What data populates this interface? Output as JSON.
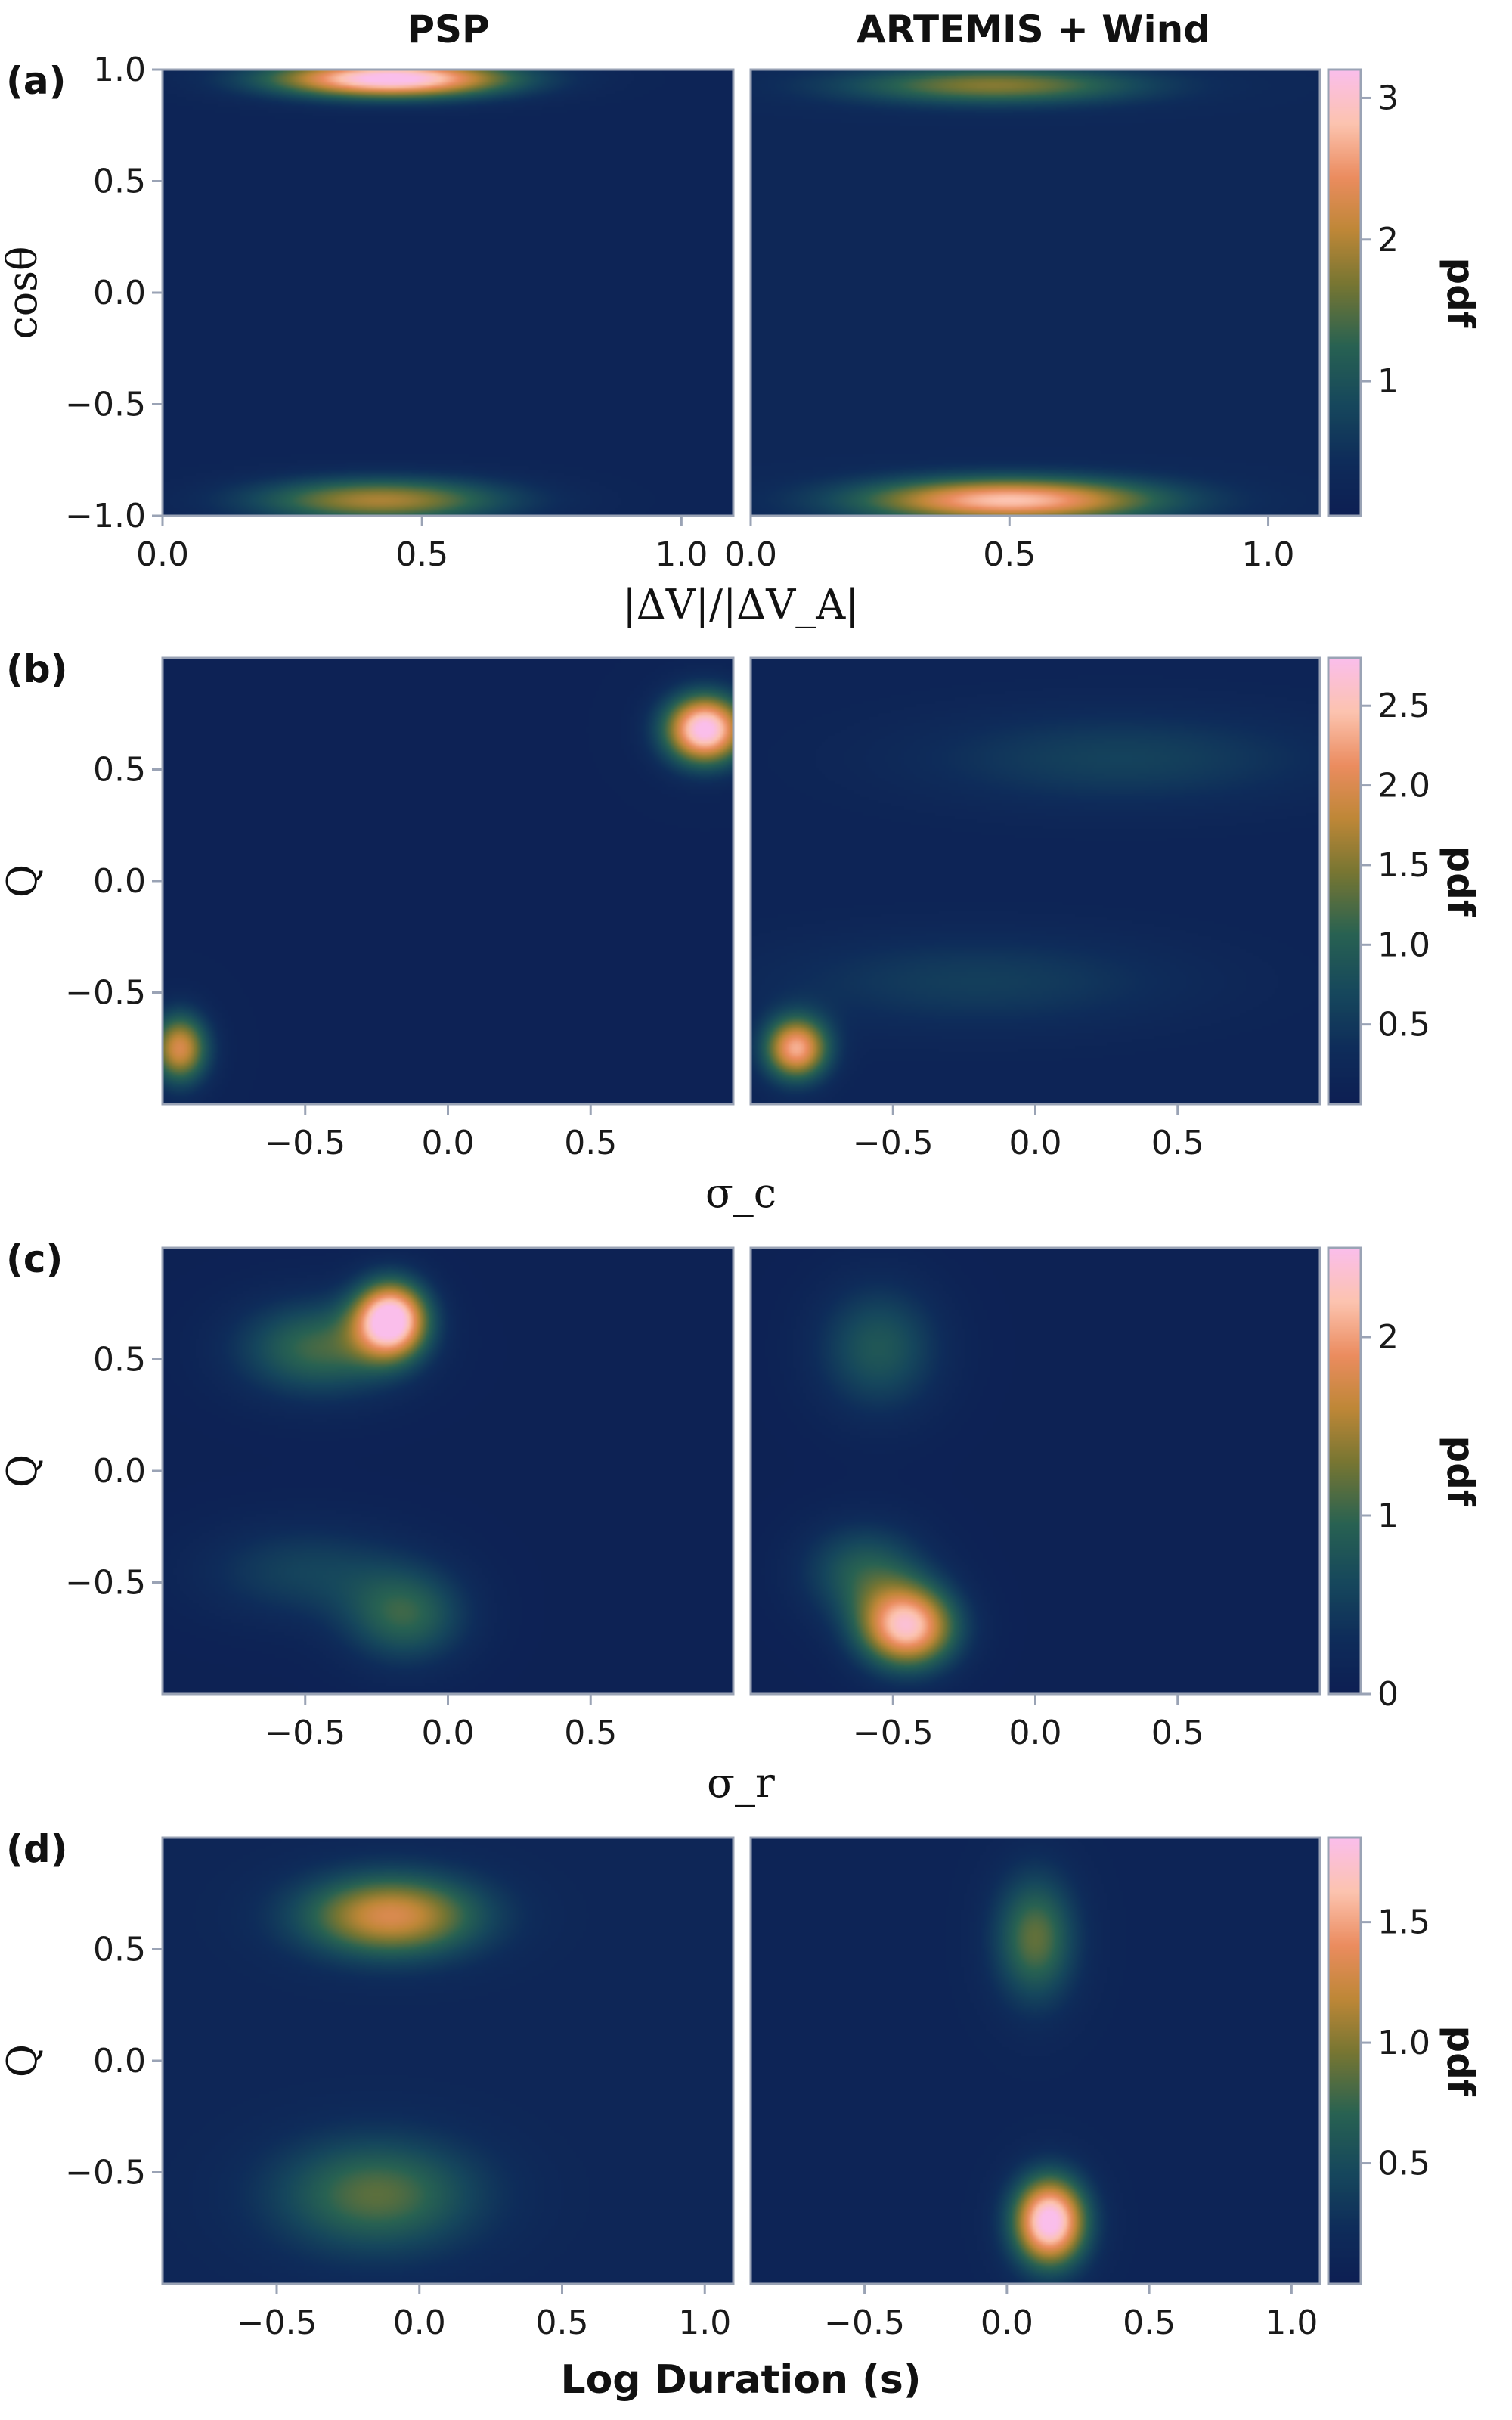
{
  "columns": [
    "PSP",
    "ARTEMIS + Wind"
  ],
  "chart_data": [
    {
      "type": "heatmap",
      "panel_label": "(a)",
      "xlabel": "|ΔV|/|ΔV_A|",
      "ylabel": "cosθ",
      "xlim": [
        0.0,
        1.1
      ],
      "ylim": [
        -1.0,
        1.0
      ],
      "x_ticks": [
        "0.0",
        "0.5",
        "1.0"
      ],
      "x_tick_values": [
        0.0,
        0.5,
        1.0
      ],
      "y_ticks": [
        "1.0",
        "0.5",
        "0.0",
        "−0.5",
        "−1.0"
      ],
      "y_tick_values": [
        1.0,
        0.5,
        0.0,
        -0.5,
        -1.0
      ],
      "colorbar_label": "pdf",
      "colorbar_range": [
        0.05,
        3.2
      ],
      "colorbar_ticks": [
        "1",
        "2",
        "3"
      ],
      "colorbar_tick_values": [
        1,
        2,
        3
      ],
      "series": [
        {
          "name": "PSP",
          "blobs": [
            {
              "x": 0.44,
              "y": 0.96,
              "sx": 0.16,
              "sy": 0.06,
              "peak": 3.2
            },
            {
              "x": 0.42,
              "y": -0.93,
              "sx": 0.17,
              "sy": 0.07,
              "peak": 1.8
            }
          ],
          "background": 0.25
        },
        {
          "name": "ARTEMIS + Wind",
          "blobs": [
            {
              "x": 0.5,
              "y": -0.93,
              "sx": 0.2,
              "sy": 0.07,
              "peak": 2.6
            },
            {
              "x": 0.47,
              "y": 0.93,
              "sx": 0.2,
              "sy": 0.06,
              "peak": 1.5
            }
          ],
          "background": 0.4
        }
      ]
    },
    {
      "type": "heatmap",
      "panel_label": "(b)",
      "xlabel": "σ_c",
      "ylabel": "Q",
      "xlim": [
        -1.0,
        1.0
      ],
      "ylim": [
        -1.0,
        1.0
      ],
      "x_ticks": [
        "−0.5",
        "0.0",
        "0.5"
      ],
      "x_tick_values": [
        -0.5,
        0.0,
        0.5
      ],
      "y_ticks": [
        "0.5",
        "0.0",
        "−0.5"
      ],
      "y_tick_values": [
        0.5,
        0.0,
        -0.5
      ],
      "colorbar_label": "pdf",
      "colorbar_range": [
        0.0,
        2.8
      ],
      "colorbar_ticks": [
        "0.5",
        "1.0",
        "1.5",
        "2.0",
        "2.5"
      ],
      "colorbar_tick_values": [
        0.5,
        1.0,
        1.5,
        2.0,
        2.5
      ],
      "series": [
        {
          "name": "PSP",
          "blobs": [
            {
              "x": 0.9,
              "y": 0.68,
              "sx": 0.1,
              "sy": 0.11,
              "peak": 2.8
            },
            {
              "x": -0.94,
              "y": -0.75,
              "sx": 0.07,
              "sy": 0.11,
              "peak": 1.9
            }
          ],
          "background": 0.15
        },
        {
          "name": "ARTEMIS + Wind",
          "blobs": [
            {
              "x": -0.84,
              "y": -0.75,
              "sx": 0.08,
              "sy": 0.1,
              "peak": 2.2
            },
            {
              "x": 0.3,
              "y": 0.55,
              "sx": 0.5,
              "sy": 0.15,
              "peak": 0.5
            },
            {
              "x": -0.2,
              "y": -0.45,
              "sx": 0.5,
              "sy": 0.15,
              "peak": 0.45
            }
          ],
          "background": 0.2
        }
      ]
    },
    {
      "type": "heatmap",
      "panel_label": "(c)",
      "xlabel": "σ_r",
      "ylabel": "Q",
      "xlim": [
        -1.0,
        1.0
      ],
      "ylim": [
        -1.0,
        1.0
      ],
      "x_ticks": [
        "−0.5",
        "0.0",
        "0.5"
      ],
      "x_tick_values": [
        -0.5,
        0.0,
        0.5
      ],
      "y_ticks": [
        "0.5",
        "0.0",
        "−0.5"
      ],
      "y_tick_values": [
        0.5,
        0.0,
        -0.5
      ],
      "colorbar_label": "pdf",
      "colorbar_range": [
        0.0,
        2.5
      ],
      "colorbar_ticks": [
        "0",
        "1",
        "2"
      ],
      "colorbar_tick_values": [
        0,
        1,
        2
      ],
      "series": [
        {
          "name": "PSP",
          "blobs": [
            {
              "x": -0.2,
              "y": 0.68,
              "sx": 0.09,
              "sy": 0.12,
              "peak": 2.5
            },
            {
              "x": -0.45,
              "y": 0.55,
              "sx": 0.2,
              "sy": 0.15,
              "peak": 1.0
            },
            {
              "x": -0.15,
              "y": -0.65,
              "sx": 0.15,
              "sy": 0.15,
              "peak": 0.9
            },
            {
              "x": -0.5,
              "y": -0.45,
              "sx": 0.25,
              "sy": 0.15,
              "peak": 0.5
            }
          ],
          "background": 0.1
        },
        {
          "name": "ARTEMIS + Wind",
          "blobs": [
            {
              "x": -0.45,
              "y": -0.7,
              "sx": 0.12,
              "sy": 0.13,
              "peak": 2.2
            },
            {
              "x": -0.6,
              "y": -0.45,
              "sx": 0.15,
              "sy": 0.15,
              "peak": 0.8
            },
            {
              "x": -0.55,
              "y": 0.55,
              "sx": 0.15,
              "sy": 0.2,
              "peak": 0.75
            }
          ],
          "background": 0.1
        }
      ]
    },
    {
      "type": "heatmap",
      "panel_label": "(d)",
      "xlabel": "Log Duration (s)",
      "ylabel": "Q",
      "xlim": [
        -0.9,
        1.1
      ],
      "ylim": [
        -1.0,
        1.0
      ],
      "x_ticks": [
        "−0.5",
        "0.0",
        "0.5",
        "1.0"
      ],
      "x_tick_values": [
        -0.5,
        0.0,
        0.5,
        1.0
      ],
      "y_ticks": [
        "0.5",
        "0.0",
        "−0.5"
      ],
      "y_tick_values": [
        0.5,
        0.0,
        -0.5
      ],
      "colorbar_label": "pdf",
      "colorbar_range": [
        0.0,
        1.85
      ],
      "colorbar_ticks": [
        "0.5",
        "1.0",
        "1.5"
      ],
      "colorbar_tick_values": [
        0.5,
        1.0,
        1.5
      ],
      "series": [
        {
          "name": "PSP",
          "blobs": [
            {
              "x": -0.1,
              "y": 0.65,
              "sx": 0.22,
              "sy": 0.13,
              "peak": 1.2
            },
            {
              "x": -0.15,
              "y": -0.6,
              "sx": 0.25,
              "sy": 0.18,
              "peak": 0.75
            }
          ],
          "background": 0.2
        },
        {
          "name": "ARTEMIS + Wind",
          "blobs": [
            {
              "x": 0.15,
              "y": -0.72,
              "sx": 0.09,
              "sy": 0.14,
              "peak": 1.85
            },
            {
              "x": 0.1,
              "y": 0.55,
              "sx": 0.1,
              "sy": 0.2,
              "peak": 0.8
            }
          ],
          "background": 0.15
        }
      ]
    }
  ]
}
